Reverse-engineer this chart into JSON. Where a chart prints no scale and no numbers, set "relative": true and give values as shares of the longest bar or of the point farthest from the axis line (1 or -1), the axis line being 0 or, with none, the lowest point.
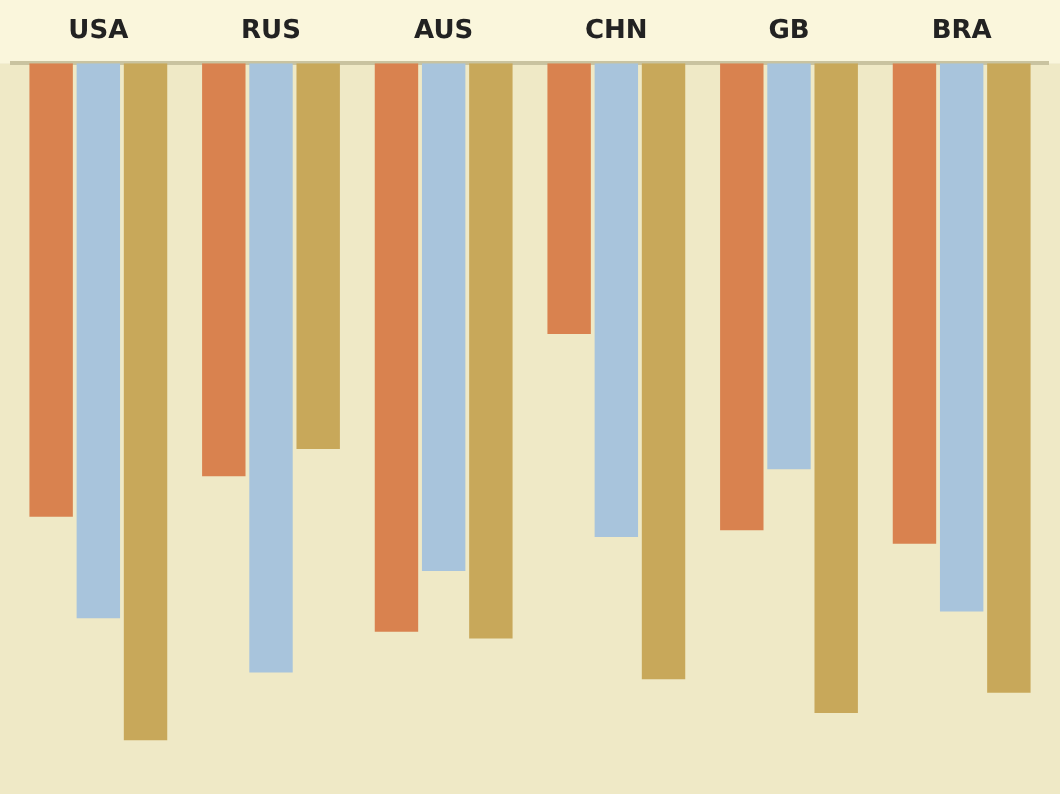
{
  "chart_data": {
    "type": "bar",
    "relative": true,
    "categories": [
      "USA",
      "RUS",
      "AUS",
      "CHN",
      "GB",
      "BRA"
    ],
    "series": [
      {
        "color": "#d9824f",
        "values": [
          -0.67,
          -0.61,
          -0.84,
          -0.4,
          -0.69,
          -0.71
        ]
      },
      {
        "color": "#a8c4dc",
        "values": [
          -0.82,
          -0.9,
          -0.75,
          -0.7,
          -0.6,
          -0.81
        ]
      },
      {
        "color": "#c8a85a",
        "values": [
          -1,
          -0.57,
          -0.85,
          -0.91,
          -0.96,
          -0.93
        ]
      }
    ]
  }
}
